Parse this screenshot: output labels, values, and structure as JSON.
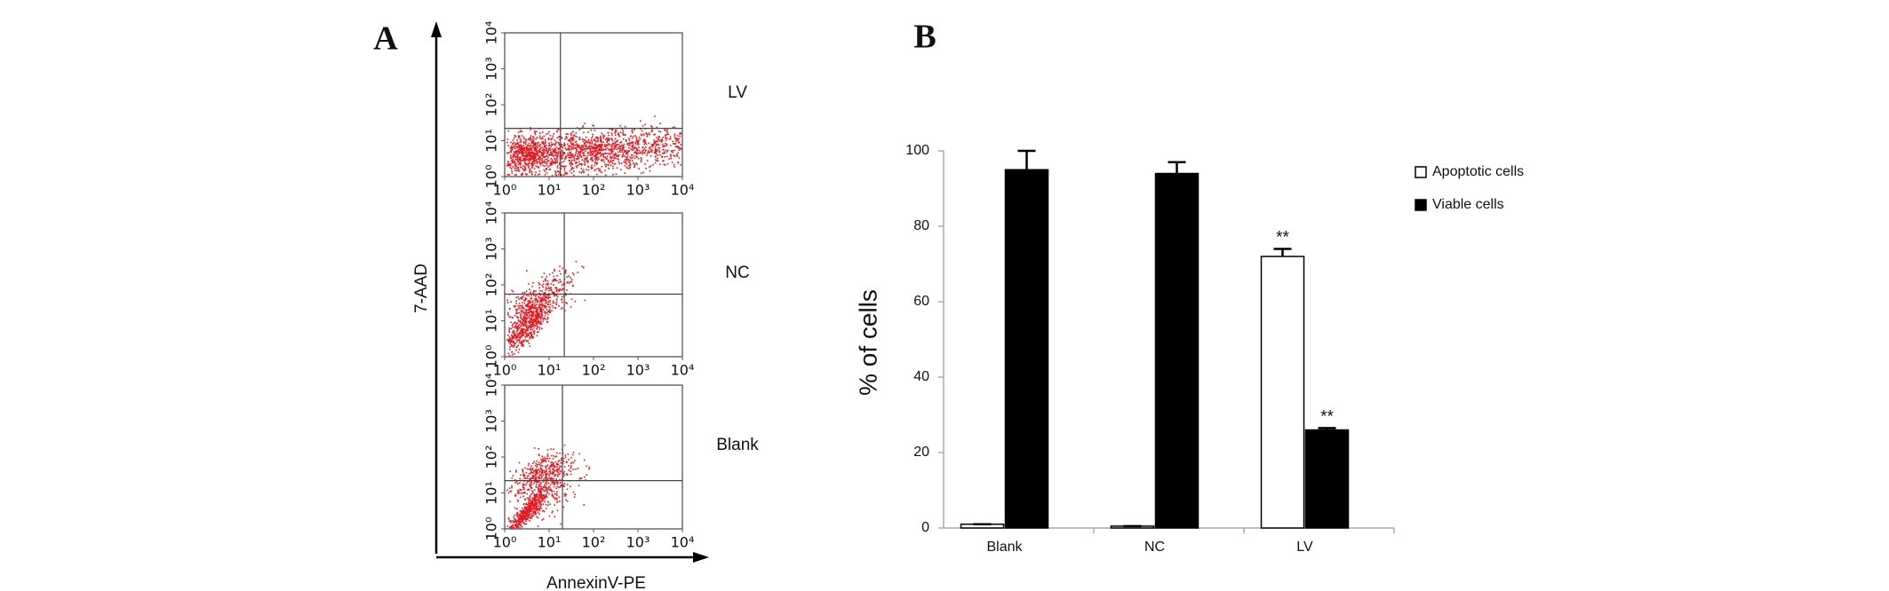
{
  "chart_data": [
    {
      "type": "flow",
      "panel_label": "A",
      "ylabel": "7-AAD",
      "xlabel": "AnnexinV-PE",
      "color": "#e8141c",
      "xlim": [
        1,
        10000
      ],
      "ylim": [
        1,
        10000
      ],
      "log": true,
      "xticks": [
        {
          "value": 1,
          "label": "10⁰"
        },
        {
          "value": 10,
          "label": "10¹"
        },
        {
          "value": 100,
          "label": "10²"
        },
        {
          "value": 1000,
          "label": "10³"
        },
        {
          "value": 10000,
          "label": "10⁴"
        }
      ],
      "yticks": [
        {
          "value": 1,
          "label": "10⁰"
        },
        {
          "value": 10,
          "label": "10¹"
        },
        {
          "value": 100,
          "label": "10²"
        },
        {
          "value": 1000,
          "label": "10³"
        },
        {
          "value": 10000,
          "label": "10⁴"
        }
      ],
      "plots": [
        {
          "label": "LV",
          "gate": [
            18,
            22
          ]
        },
        {
          "label": "NC",
          "gate": [
            22,
            55
          ]
        },
        {
          "label": "Blank",
          "gate": [
            20,
            22
          ]
        }
      ]
    },
    {
      "type": "bar",
      "panel_label": "B",
      "ylabel": "% of cells",
      "categories": [
        "Blank",
        "NC",
        "LV"
      ],
      "ylim": [
        0,
        100
      ],
      "yticks": [
        0,
        20,
        40,
        60,
        80,
        100
      ],
      "series": [
        {
          "name": "Apoptotic cells",
          "color": "#ffffff",
          "values": [
            1,
            0.5,
            72
          ],
          "errors": [
            0,
            0,
            2
          ],
          "annotations": [
            null,
            null,
            "**"
          ]
        },
        {
          "name": "Viable cells",
          "color": "#000000",
          "values": [
            95,
            94,
            26
          ],
          "errors": [
            5,
            3,
            0.5
          ],
          "annotations": [
            null,
            null,
            "**"
          ]
        }
      ]
    }
  ]
}
